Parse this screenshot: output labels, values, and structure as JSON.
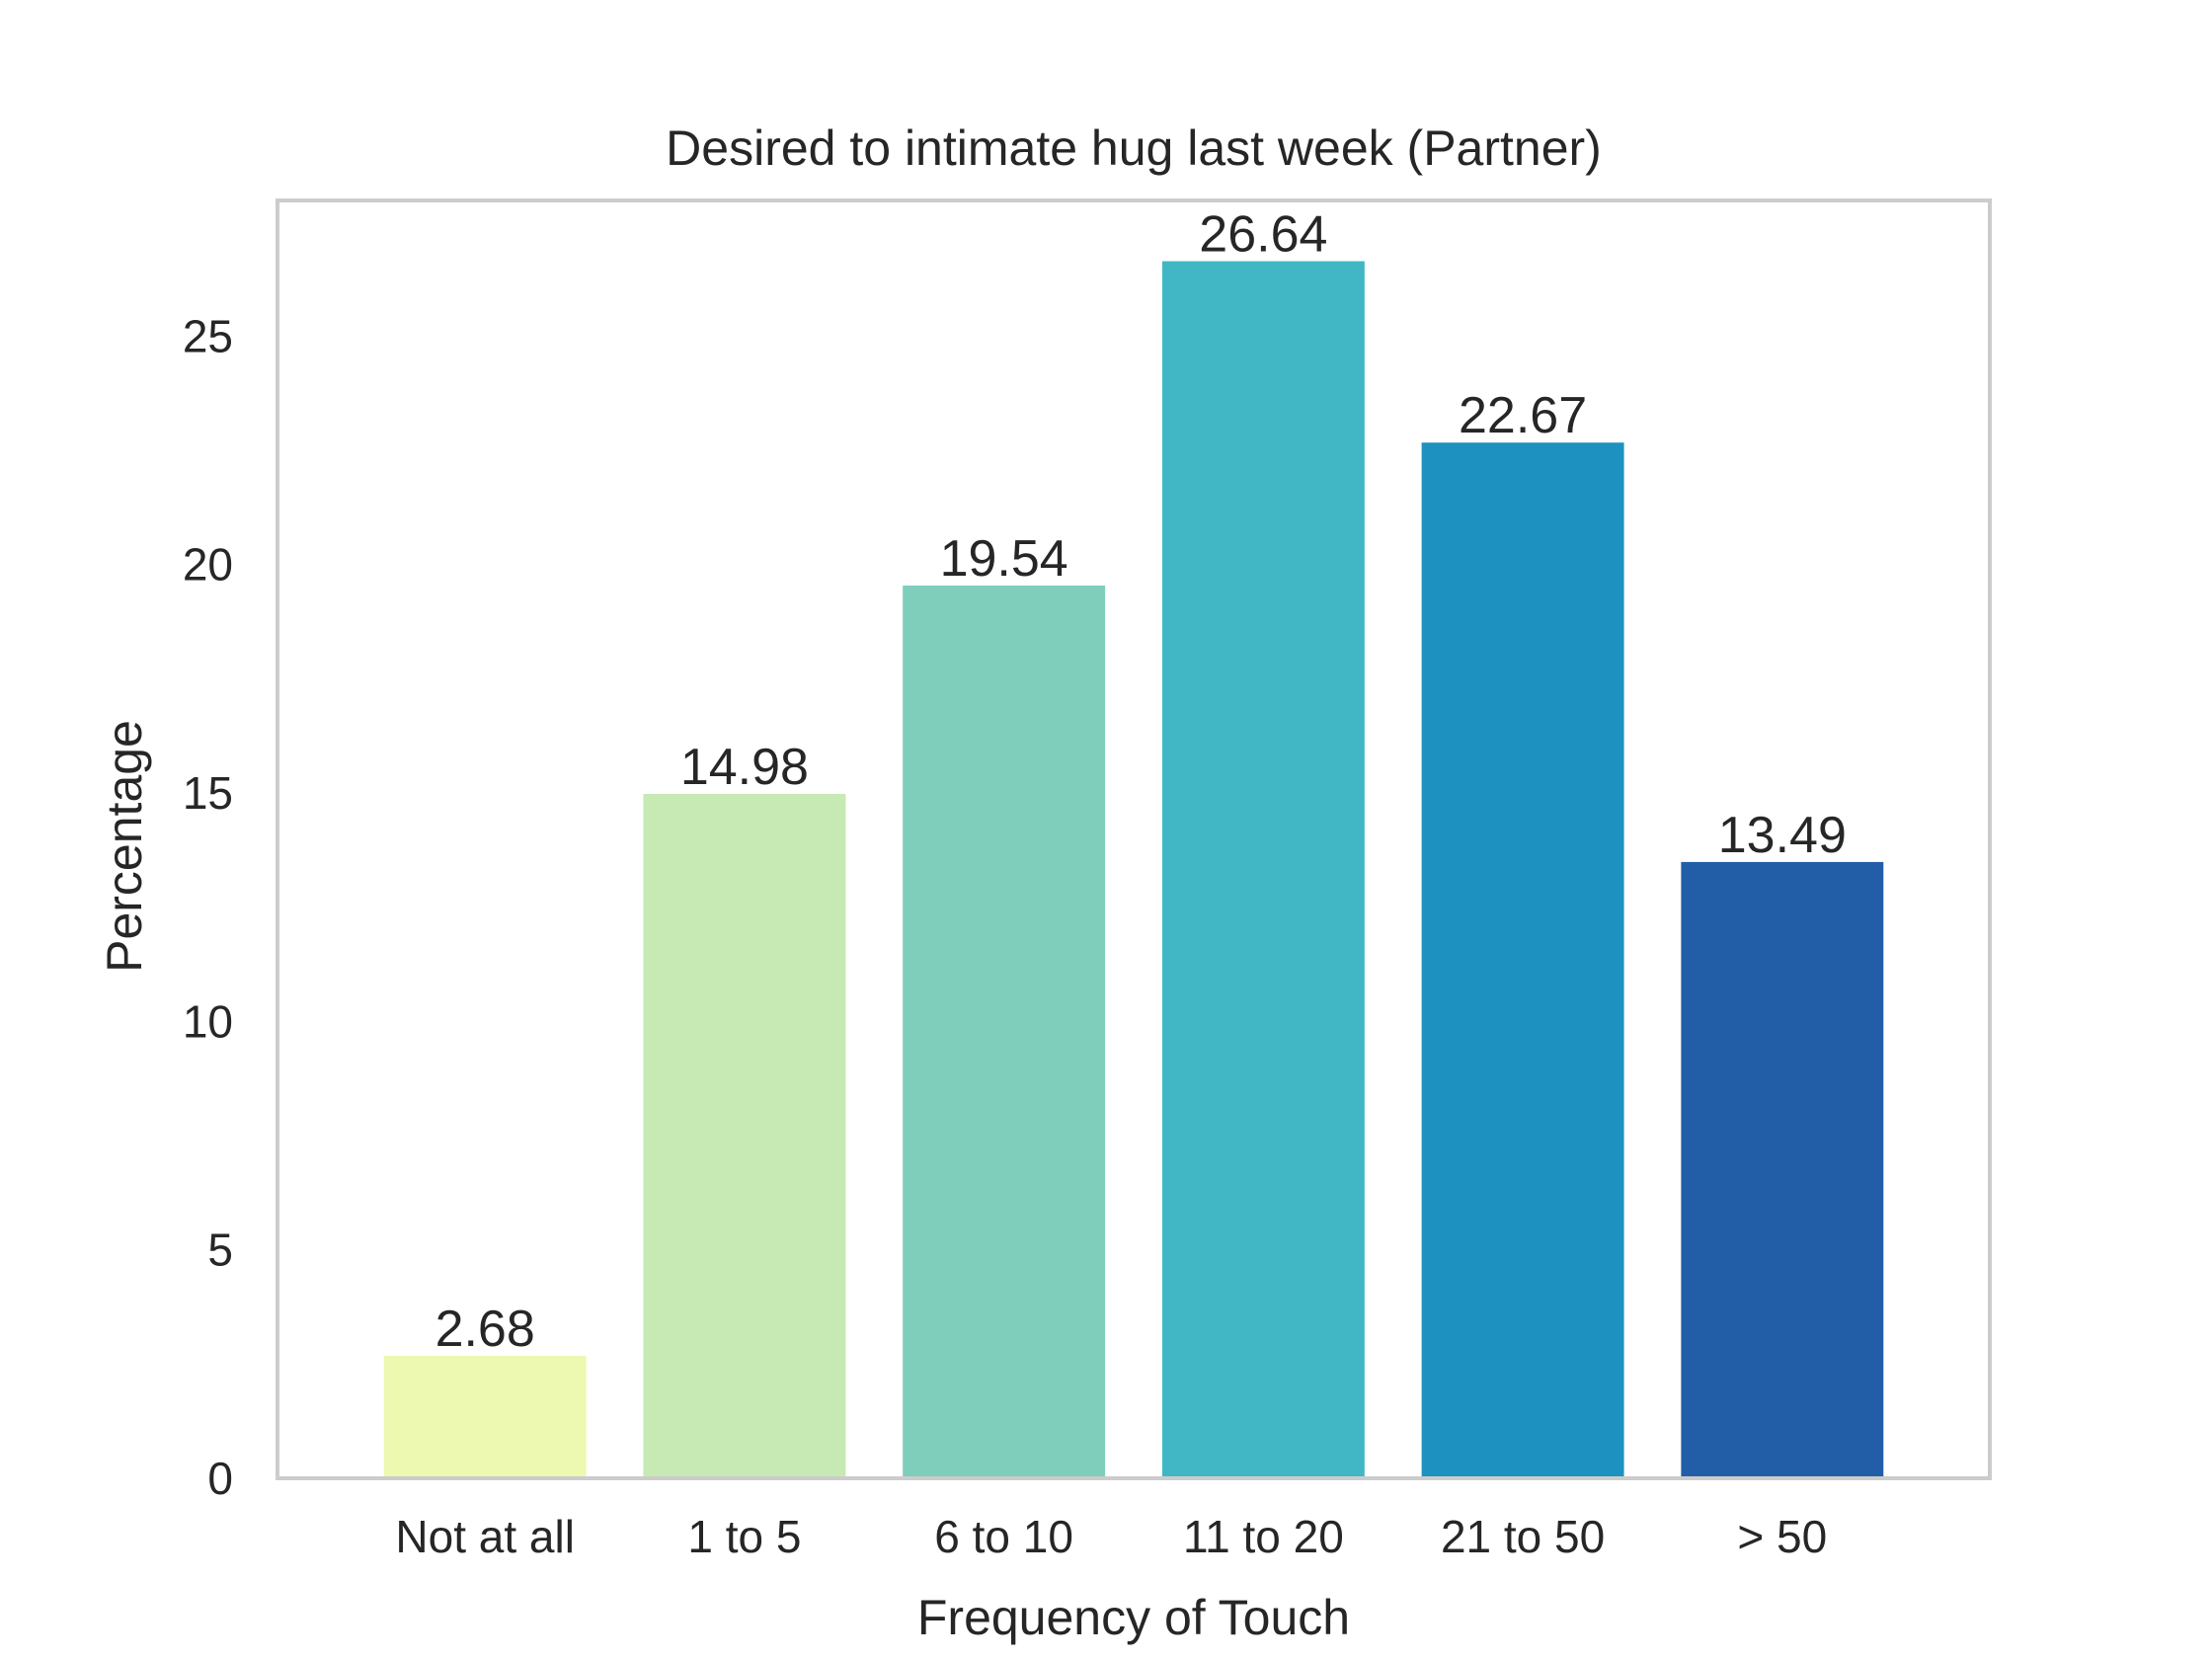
{
  "chart_data": {
    "type": "bar",
    "title": "Desired to intimate hug last week (Partner)",
    "xlabel": "Frequency of Touch",
    "ylabel": "Percentage",
    "categories": [
      "Not at all",
      "1 to 5",
      "6 to 10",
      "11 to 20",
      "21 to 50",
      "> 50"
    ],
    "values": [
      2.68,
      14.98,
      19.54,
      26.64,
      22.67,
      13.49
    ],
    "value_labels": [
      "2.68",
      "14.98",
      "19.54",
      "26.64",
      "22.67",
      "13.49"
    ],
    "colors": [
      "#edf8b1",
      "#c7e9b4",
      "#7fcdbb",
      "#41b6c4",
      "#1d91c0",
      "#225ea8"
    ],
    "yticks": [
      0,
      5,
      10,
      15,
      20,
      25
    ],
    "ytick_labels": [
      "0",
      "5",
      "10",
      "15",
      "20",
      "25"
    ],
    "ylim": [
      0,
      27.97
    ],
    "grid": false,
    "legend": "none",
    "frame_color": "#cccccc"
  }
}
